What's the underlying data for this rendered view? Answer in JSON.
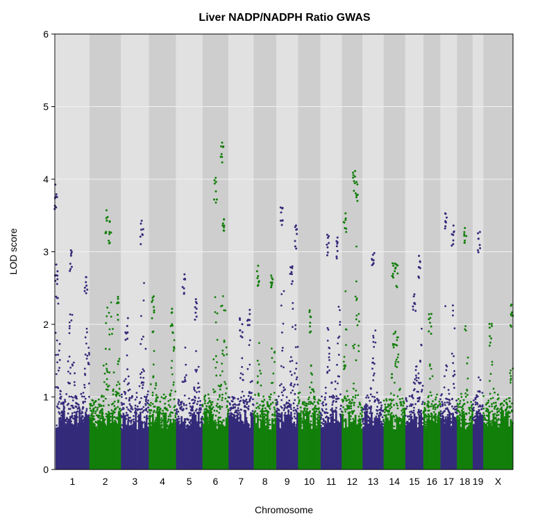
{
  "chart_data": {
    "type": "scatter",
    "title": "Liver NADP/NADPH Ratio GWAS",
    "xlabel": "Chromosome",
    "ylabel": "LOD score",
    "ylim": [
      0,
      6
    ],
    "yticks": [
      "0",
      "1",
      "2",
      "3",
      "4",
      "5",
      "6"
    ],
    "grid": true,
    "legend": "none",
    "colors": {
      "odd": "#342a7a",
      "even": "#137f0b"
    },
    "chromosomes": [
      {
        "name": "1",
        "length": 195,
        "peak": 3.93,
        "peaks": [
          [
            0.01,
            3.93
          ],
          [
            0.02,
            2.9
          ],
          [
            0.45,
            3.04
          ],
          [
            0.9,
            2.75
          ]
        ]
      },
      {
        "name": "2",
        "length": 182,
        "peak": 3.6,
        "peaks": [
          [
            0.55,
            3.6
          ],
          [
            0.65,
            3.45
          ],
          [
            0.9,
            2.4
          ]
        ]
      },
      {
        "name": "3",
        "length": 160,
        "peak": 3.43,
        "peaks": [
          [
            0.75,
            3.43
          ],
          [
            0.2,
            2.1
          ]
        ]
      },
      {
        "name": "4",
        "length": 157,
        "peak": 2.4,
        "peaks": [
          [
            0.15,
            2.4
          ],
          [
            0.85,
            2.22
          ]
        ]
      },
      {
        "name": "5",
        "length": 152,
        "peak": 2.7,
        "peaks": [
          [
            0.3,
            2.7
          ],
          [
            0.75,
            2.4
          ]
        ]
      },
      {
        "name": "6",
        "length": 150,
        "peak": 4.52,
        "peaks": [
          [
            0.5,
            4.02
          ],
          [
            0.75,
            4.52
          ],
          [
            0.8,
            3.5
          ]
        ]
      },
      {
        "name": "7",
        "length": 145,
        "peak": 2.3,
        "peaks": [
          [
            0.5,
            2.1
          ],
          [
            0.8,
            2.3
          ]
        ]
      },
      {
        "name": "8",
        "length": 130,
        "peak": 2.85,
        "peaks": [
          [
            0.2,
            2.85
          ],
          [
            0.8,
            2.75
          ]
        ]
      },
      {
        "name": "9",
        "length": 125,
        "peak": 3.62,
        "peaks": [
          [
            0.25,
            3.62
          ],
          [
            0.7,
            2.9
          ],
          [
            0.9,
            3.37
          ]
        ]
      },
      {
        "name": "10",
        "length": 130,
        "peak": 2.2,
        "peaks": [
          [
            0.55,
            2.2
          ]
        ]
      },
      {
        "name": "11",
        "length": 122,
        "peak": 3.3,
        "peaks": [
          [
            0.35,
            3.3
          ],
          [
            0.8,
            3.25
          ]
        ]
      },
      {
        "name": "12",
        "length": 120,
        "peak": 4.12,
        "peaks": [
          [
            0.15,
            3.54
          ],
          [
            0.6,
            4.12
          ],
          [
            0.7,
            4.05
          ]
        ]
      },
      {
        "name": "13",
        "length": 121,
        "peak": 3.08,
        "peaks": [
          [
            0.5,
            3.08
          ]
        ]
      },
      {
        "name": "14",
        "length": 125,
        "peak": 2.9,
        "peaks": [
          [
            0.45,
            2.9
          ],
          [
            0.6,
            2.85
          ]
        ]
      },
      {
        "name": "15",
        "length": 104,
        "peak": 2.98,
        "peaks": [
          [
            0.5,
            2.52
          ],
          [
            0.8,
            2.98
          ]
        ]
      },
      {
        "name": "16",
        "length": 98,
        "peak": 2.2,
        "peaks": [
          [
            0.4,
            2.2
          ]
        ]
      },
      {
        "name": "17",
        "length": 95,
        "peak": 3.67,
        "peaks": [
          [
            0.3,
            3.67
          ],
          [
            0.75,
            3.38
          ]
        ]
      },
      {
        "name": "18",
        "length": 91,
        "peak": 3.33,
        "peaks": [
          [
            0.55,
            3.33
          ]
        ]
      },
      {
        "name": "19",
        "length": 61,
        "peak": 3.28,
        "peaks": [
          [
            0.6,
            3.28
          ]
        ]
      },
      {
        "name": "X",
        "length": 171,
        "peak": 2.28,
        "peaks": [
          [
            0.25,
            2.02
          ],
          [
            0.95,
            2.28
          ]
        ]
      }
    ]
  }
}
